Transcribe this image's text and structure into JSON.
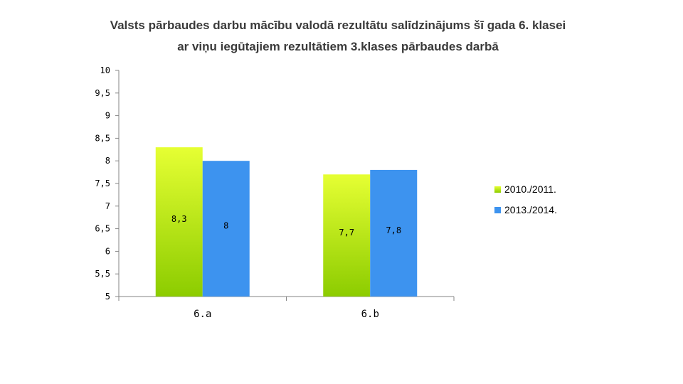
{
  "chart_data": {
    "type": "bar",
    "title": [
      "Valsts pārbaudes darbu mācību valodā rezultātu salīdzinājums šī gada 6. klasei",
      "ar viņu iegūtajiem rezultātiem 3.klases pārbaudes darbā"
    ],
    "categories": [
      "6.a",
      "6.b"
    ],
    "series": [
      {
        "name": "2010./2011.",
        "values": [
          8.3,
          7.7
        ],
        "labels": [
          "8,3",
          "7,7"
        ],
        "color_top": "#e6ff33",
        "color_bottom": "#8ccc00"
      },
      {
        "name": "2013./2014.",
        "values": [
          8,
          7.8
        ],
        "labels": [
          "8",
          "7,8"
        ],
        "color_top": "#3d93ef",
        "color_bottom": "#3d93ef"
      }
    ],
    "ylim": [
      5,
      10
    ],
    "yticks": [
      5,
      5.5,
      6,
      6.5,
      7,
      7.5,
      8,
      8.5,
      9,
      9.5,
      10
    ],
    "ytick_labels": [
      "5",
      "5,5",
      "6",
      "6,5",
      "7",
      "7,5",
      "8",
      "8,5",
      "9",
      "9,5",
      "10"
    ],
    "xlabel": "",
    "ylabel": "",
    "grid": false,
    "legend_position": "right"
  }
}
